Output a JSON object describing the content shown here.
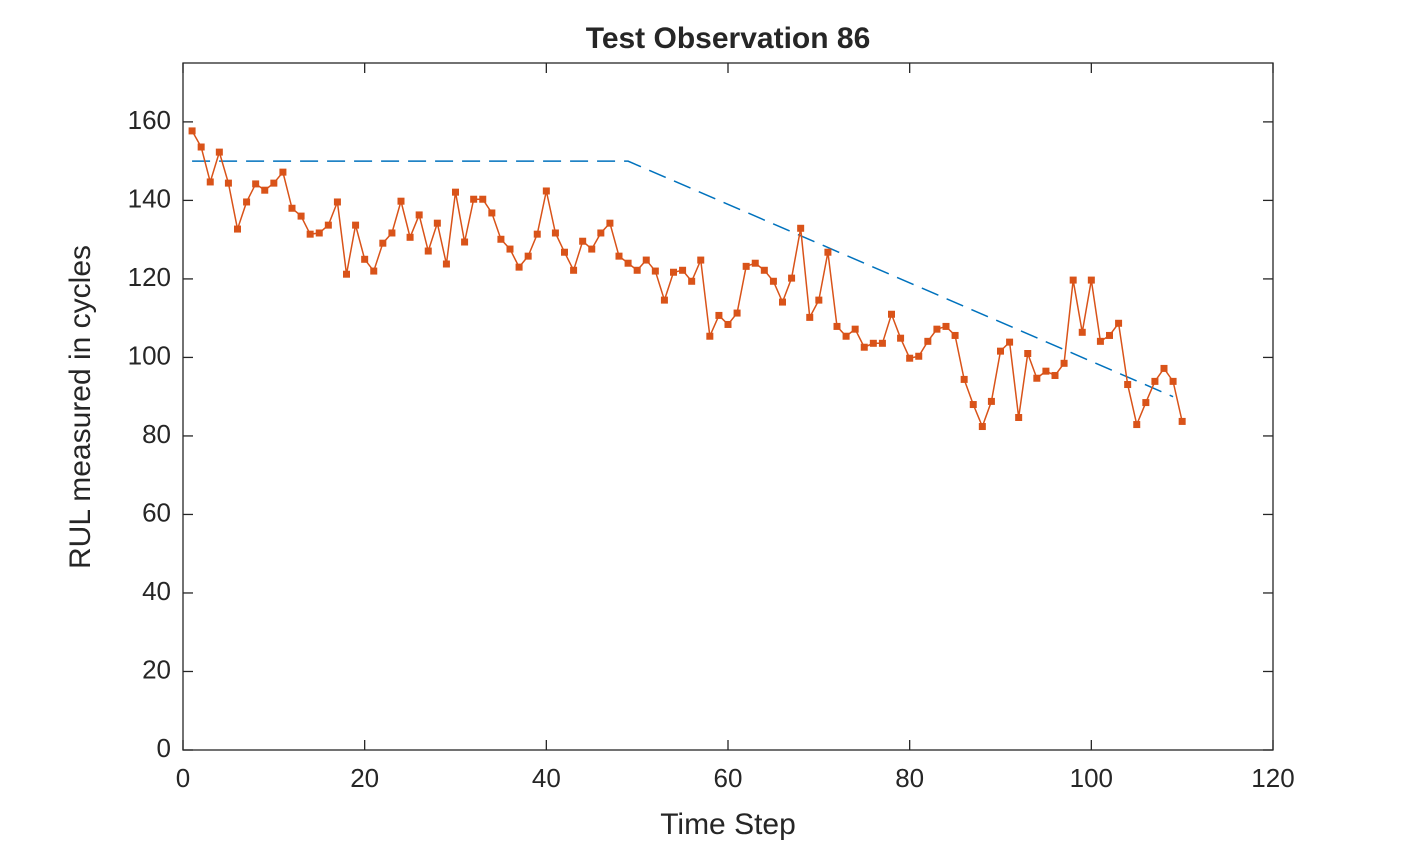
{
  "chart_data": {
    "type": "line",
    "title": "Test Observation 86",
    "xlabel": "Time Step",
    "ylabel": "RUL measured in cycles",
    "xlim": [
      0,
      120
    ],
    "xticks": [
      0,
      20,
      40,
      60,
      80,
      100,
      120
    ],
    "ylim": [
      0,
      175
    ],
    "yticks": [
      0,
      20,
      40,
      60,
      80,
      100,
      120,
      140,
      160
    ],
    "series": [
      {
        "color": "#0072bd",
        "dash": true,
        "marker": false,
        "x": [
          1,
          49,
          109
        ],
        "values": [
          150,
          150,
          90
        ]
      },
      {
        "color": "#d95319",
        "dash": false,
        "marker": true,
        "x": [
          1,
          2,
          3,
          4,
          5,
          6,
          7,
          8,
          9,
          10,
          11,
          12,
          13,
          14,
          15,
          16,
          17,
          18,
          19,
          20,
          21,
          22,
          23,
          24,
          25,
          26,
          27,
          28,
          29,
          30,
          31,
          32,
          33,
          34,
          35,
          36,
          37,
          38,
          39,
          40,
          41,
          42,
          43,
          44,
          45,
          46,
          47,
          48,
          49,
          50,
          51,
          52,
          53,
          54,
          55,
          56,
          57,
          58,
          59,
          60,
          61,
          62,
          63,
          64,
          65,
          66,
          67,
          68,
          69,
          70,
          71,
          72,
          73,
          74,
          75,
          76,
          77,
          78,
          79,
          80,
          81,
          82,
          83,
          84,
          85,
          86,
          87,
          88,
          89,
          90,
          91,
          92,
          93,
          94,
          95,
          96,
          97,
          98,
          99,
          100,
          101,
          102,
          103,
          104,
          105,
          106,
          107,
          108,
          109,
          110
        ],
        "values": [
          157.7,
          153.6,
          144.7,
          152.3,
          144.4,
          132.7,
          139.6,
          144.2,
          142.6,
          144.4,
          147.2,
          138,
          136,
          131.4,
          131.7,
          133.7,
          139.6,
          121.2,
          133.7,
          125,
          122,
          129.1,
          131.7,
          139.8,
          130.6,
          136.3,
          127.1,
          134.2,
          123.8,
          142.1,
          129.4,
          140.3,
          140.3,
          136.8,
          130.1,
          127.6,
          123,
          125.8,
          131.4,
          142.4,
          131.7,
          126.8,
          122.2,
          129.6,
          127.6,
          131.7,
          134.2,
          125.8,
          124,
          122.2,
          124.8,
          122,
          114.6,
          121.7,
          122.2,
          119.4,
          124.8,
          105.4,
          110.7,
          108.4,
          111.3,
          123.2,
          124,
          122.2,
          119.4,
          114.1,
          120.2,
          132.9,
          110.2,
          114.6,
          126.8,
          107.9,
          105.4,
          107.2,
          102.6,
          103.6,
          103.6,
          111,
          104.9,
          99.8,
          100.3,
          104.1,
          107.2,
          107.9,
          105.6,
          94.4,
          88,
          82.4,
          88.8,
          101.6,
          103.9,
          84.7,
          101,
          94.7,
          96.5,
          95.4,
          98.5,
          119.7,
          106.4,
          119.7,
          104.1,
          105.6,
          108.7,
          93.1,
          82.9,
          88.5,
          93.9,
          97.2,
          93.9,
          83.7
        ]
      }
    ]
  }
}
